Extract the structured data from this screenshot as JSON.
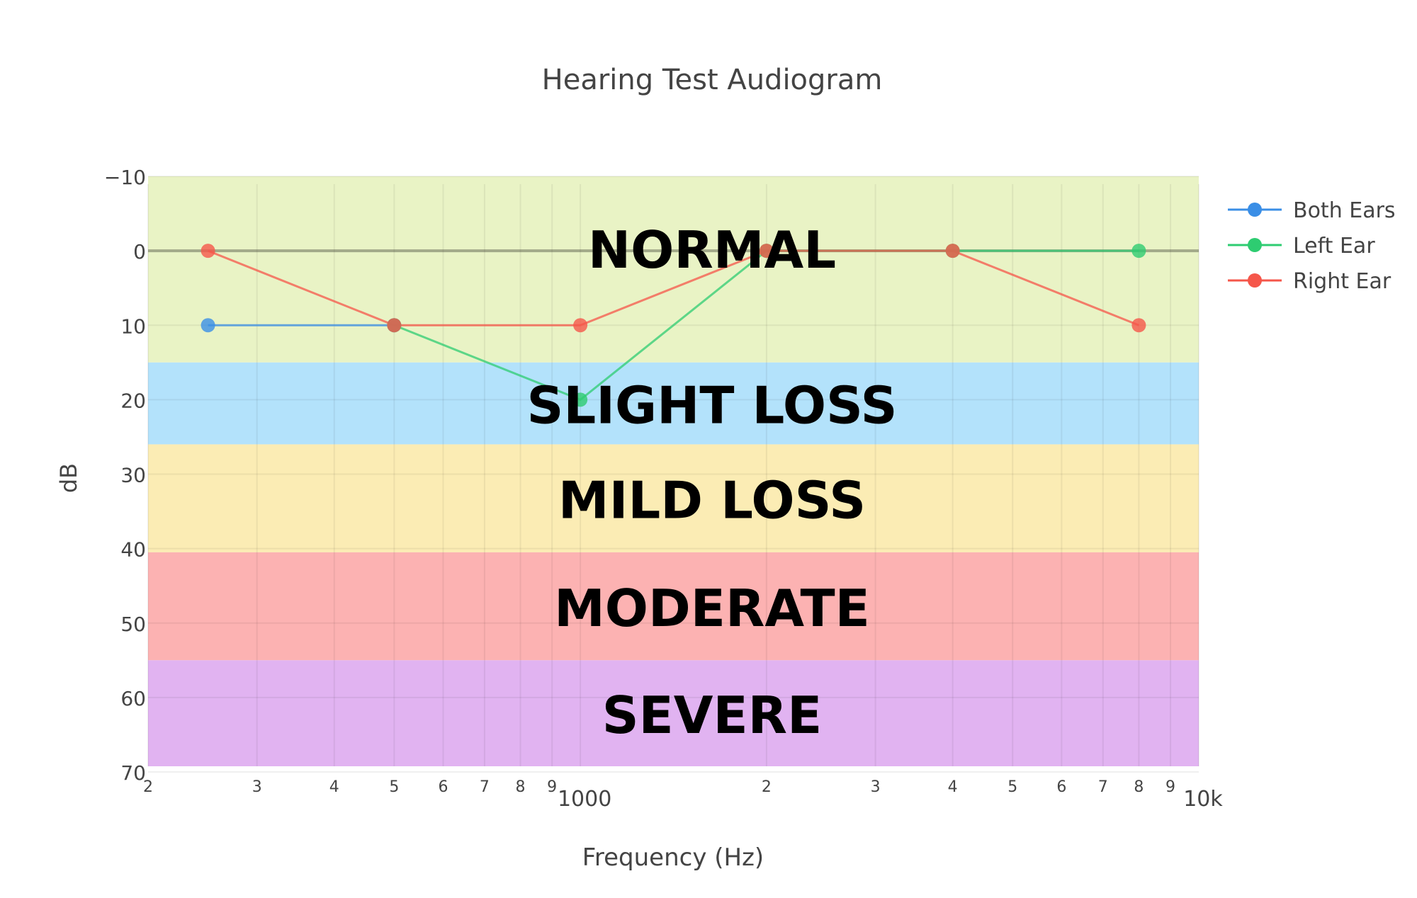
{
  "chart_data": {
    "type": "line",
    "title": "Hearing Test Audiogram",
    "xlabel": "Frequency (Hz)",
    "ylabel": "dB",
    "x_scale": "log",
    "xlim": [
      200,
      10000
    ],
    "ylim": [
      -10,
      70
    ],
    "y_reversed": true,
    "grid": true,
    "legend_position": "right",
    "y_ticks": [
      {
        "value": -10,
        "label": "−10"
      },
      {
        "value": 0,
        "label": "0"
      },
      {
        "value": 10,
        "label": "10"
      },
      {
        "value": 20,
        "label": "20"
      },
      {
        "value": 30,
        "label": "30"
      },
      {
        "value": 40,
        "label": "40"
      },
      {
        "value": 50,
        "label": "50"
      },
      {
        "value": 60,
        "label": "60"
      },
      {
        "value": 70,
        "label": "70"
      }
    ],
    "x_minor_ticks": [
      {
        "value": 200,
        "label": "2"
      },
      {
        "value": 300,
        "label": "3"
      },
      {
        "value": 400,
        "label": "4"
      },
      {
        "value": 500,
        "label": "5"
      },
      {
        "value": 600,
        "label": "6"
      },
      {
        "value": 700,
        "label": "7"
      },
      {
        "value": 800,
        "label": "8"
      },
      {
        "value": 900,
        "label": "9"
      },
      {
        "value": 2000,
        "label": "2"
      },
      {
        "value": 3000,
        "label": "3"
      },
      {
        "value": 4000,
        "label": "4"
      },
      {
        "value": 5000,
        "label": "5"
      },
      {
        "value": 6000,
        "label": "6"
      },
      {
        "value": 7000,
        "label": "7"
      },
      {
        "value": 8000,
        "label": "8"
      },
      {
        "value": 9000,
        "label": "9"
      }
    ],
    "x_major_ticks": [
      {
        "value": 1000,
        "label": "1000"
      },
      {
        "value": 10000,
        "label": "10k"
      }
    ],
    "zones": [
      {
        "label": "NORMAL",
        "from": -10,
        "to": 15,
        "color": "#e9f3c5"
      },
      {
        "label": "SLIGHT LOSS",
        "from": 15,
        "to": 26,
        "color": "#b3e2fb"
      },
      {
        "label": "MILD LOSS",
        "from": 26,
        "to": 40.5,
        "color": "#fbecb4"
      },
      {
        "label": "MODERATE",
        "from": 40.5,
        "to": 55,
        "color": "#fcb2b2"
      },
      {
        "label": "SEVERE",
        "from": 55,
        "to": 70,
        "color": "#e1b3f1"
      }
    ],
    "series": [
      {
        "name": "Both Ears",
        "color": "#3a8ee6",
        "x": [
          250,
          500
        ],
        "y": [
          10,
          10
        ]
      },
      {
        "name": "Left Ear",
        "color": "#2ecc71",
        "x": [
          500,
          1000,
          2000,
          4000,
          8000
        ],
        "y": [
          10,
          20,
          0,
          0,
          0
        ]
      },
      {
        "name": "Right Ear",
        "color": "#f5564a",
        "x": [
          250,
          500,
          1000,
          2000,
          4000,
          8000
        ],
        "y": [
          0,
          10,
          10,
          0,
          0,
          10
        ]
      }
    ]
  }
}
